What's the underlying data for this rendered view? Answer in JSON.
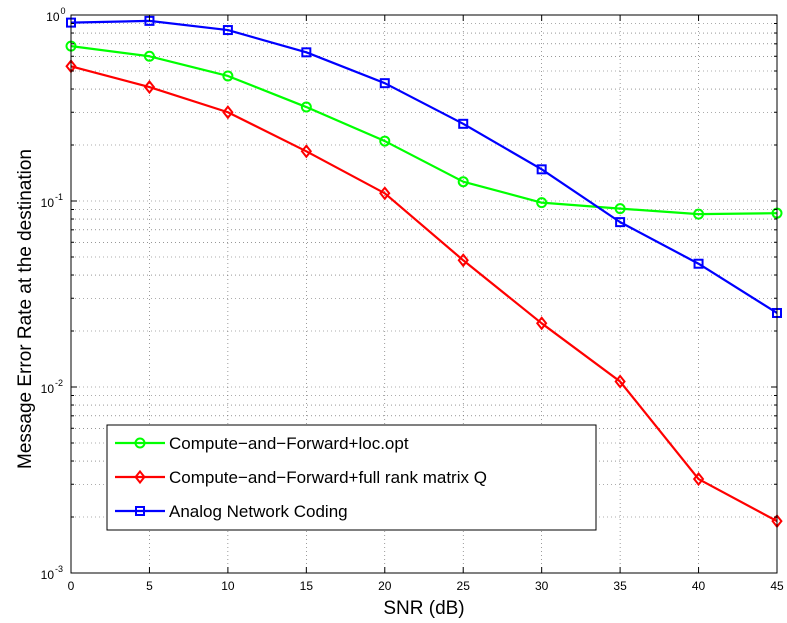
{
  "chart_data": {
    "type": "line",
    "xlabel": "SNR (dB)",
    "ylabel": "Message Error Rate at the destination",
    "x": [
      0,
      5,
      10,
      15,
      20,
      25,
      30,
      35,
      40,
      45
    ],
    "xlim": [
      0,
      45
    ],
    "xticks": [
      "0",
      "5",
      "10",
      "15",
      "20",
      "25",
      "30",
      "35",
      "40",
      "45"
    ],
    "yscale": "log",
    "ylim": [
      0.001,
      1
    ],
    "yticks": [
      {
        "base": "10",
        "exp": "0"
      },
      {
        "base": "10",
        "exp": "-1"
      },
      {
        "base": "10",
        "exp": "-2"
      },
      {
        "base": "10",
        "exp": "-3"
      }
    ],
    "grid": true,
    "legend_position": "bottom-left",
    "series": [
      {
        "name": "Compute−and−Forward+loc.opt",
        "color": "#00ff00",
        "marker": "circle",
        "values": [
          0.68,
          0.6,
          0.47,
          0.32,
          0.21,
          0.127,
          0.098,
          0.091,
          0.085,
          0.086
        ]
      },
      {
        "name": "Compute−and−Forward+full rank matrix Q",
        "color": "#ff0000",
        "marker": "diamond",
        "values": [
          0.53,
          0.41,
          0.3,
          0.185,
          0.11,
          0.048,
          0.022,
          0.0107,
          0.0032,
          0.0019
        ]
      },
      {
        "name": "Analog Network Coding",
        "color": "#0000ff",
        "marker": "square",
        "values": [
          0.91,
          0.93,
          0.83,
          0.63,
          0.43,
          0.26,
          0.148,
          0.077,
          0.046,
          0.025
        ]
      }
    ]
  }
}
